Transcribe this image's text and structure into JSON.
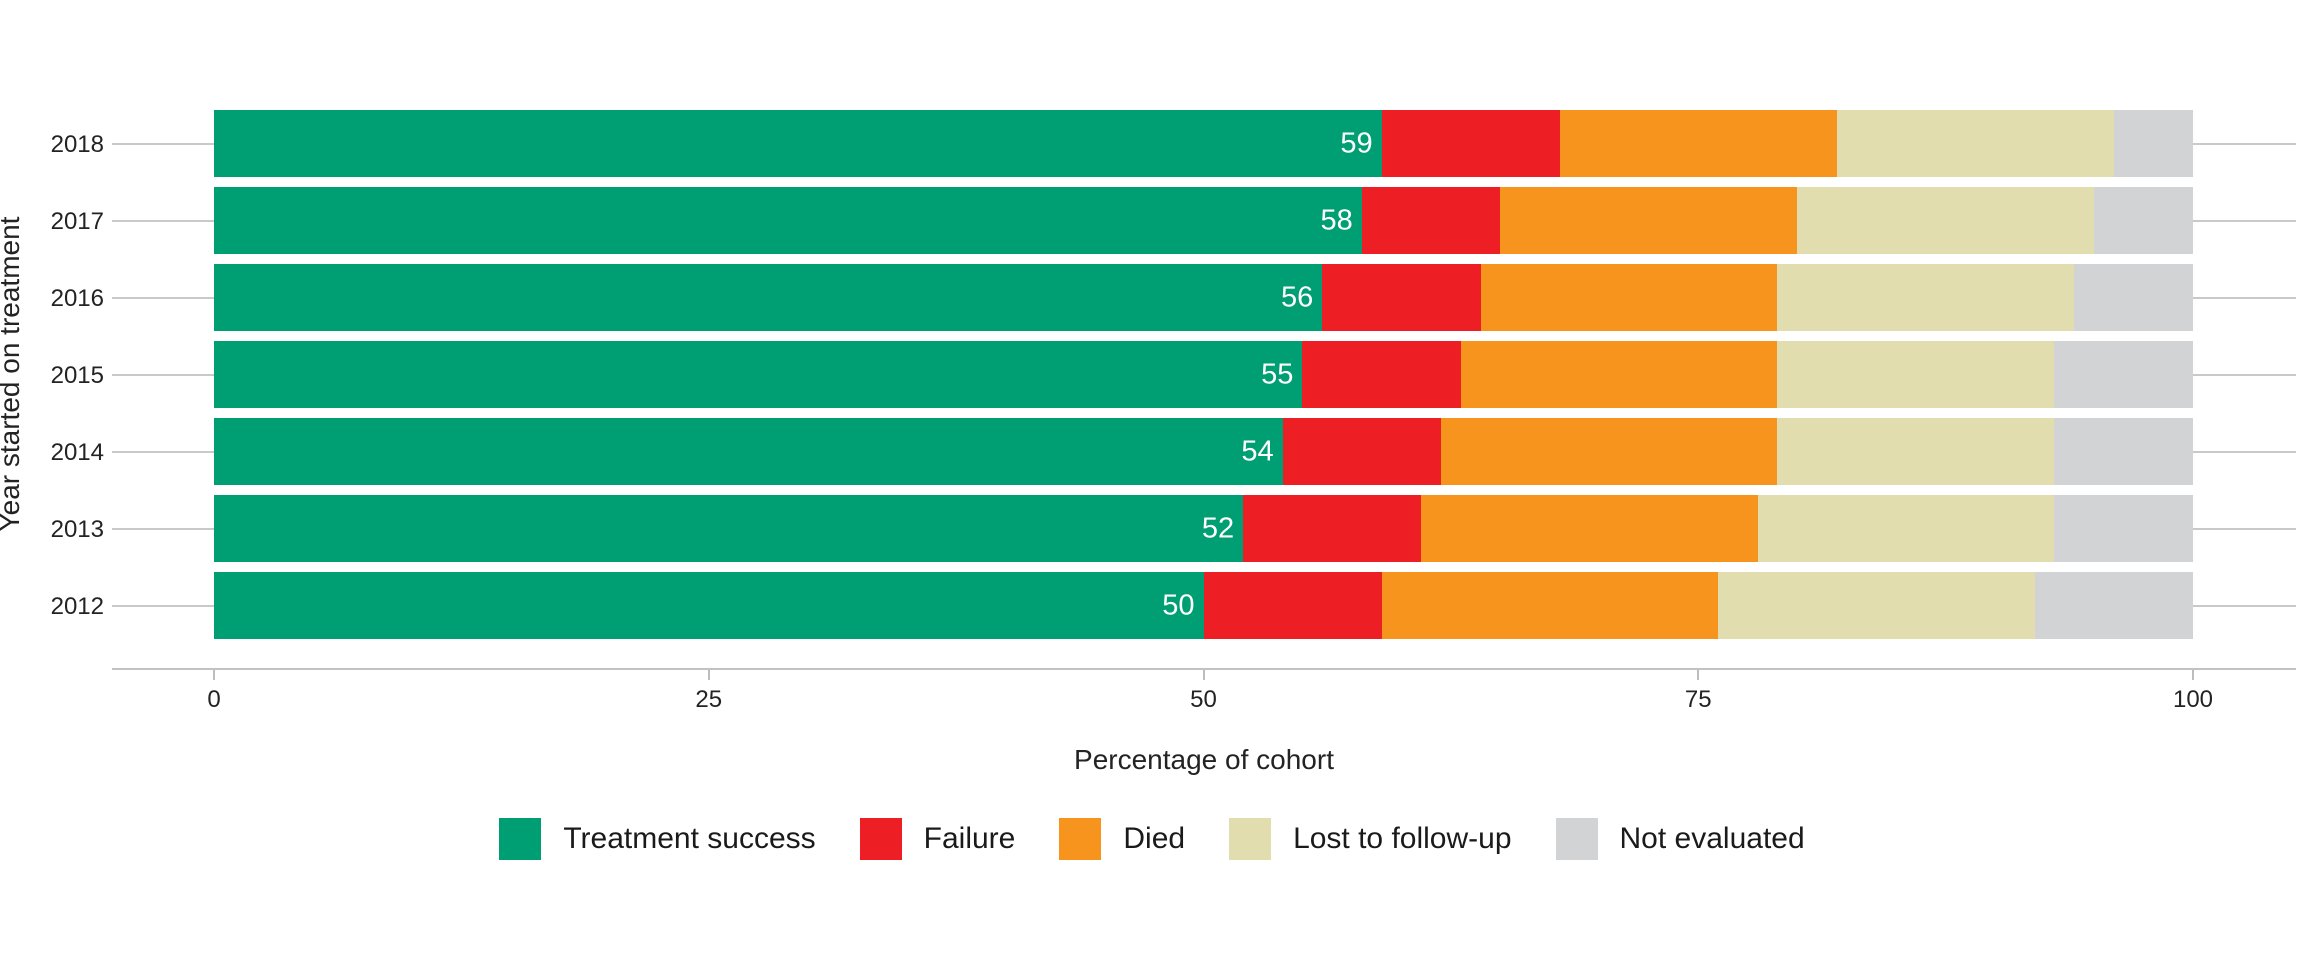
{
  "chart_data": {
    "type": "bar",
    "orientation": "horizontal",
    "stacked": true,
    "xlabel": "Percentage of cohort",
    "ylabel": "Year started on treatment",
    "categories": [
      "2018",
      "2017",
      "2016",
      "2015",
      "2014",
      "2013",
      "2012"
    ],
    "series": [
      {
        "name": "Treatment success",
        "color": "#009E73",
        "values": [
          59,
          58,
          56,
          55,
          54,
          52,
          50
        ],
        "show_value_labels": true
      },
      {
        "name": "Failure",
        "color": "#ED1F24",
        "values": [
          9,
          7,
          8,
          8,
          8,
          9,
          9
        ],
        "show_value_labels": false
      },
      {
        "name": "Died",
        "color": "#F7941E",
        "values": [
          14,
          15,
          15,
          16,
          17,
          17,
          17
        ],
        "show_value_labels": false
      },
      {
        "name": "Lost to follow-up",
        "color": "#E2DDAE",
        "values": [
          14,
          15,
          15,
          14,
          14,
          15,
          16
        ],
        "show_value_labels": false
      },
      {
        "name": "Not evaluated",
        "color": "#D1D3D4",
        "values": [
          4,
          5,
          6,
          7,
          7,
          7,
          8
        ],
        "show_value_labels": false
      }
    ],
    "bar_value_labels": [
      "59",
      "58",
      "56",
      "55",
      "54",
      "52",
      "50"
    ],
    "x_ticks": [
      "0",
      "25",
      "50",
      "75",
      "100"
    ],
    "x_tick_values": [
      0,
      25,
      50,
      75,
      100
    ],
    "xlim": [
      0,
      100
    ],
    "grid": "horizontal-major",
    "legend_position": "bottom"
  }
}
